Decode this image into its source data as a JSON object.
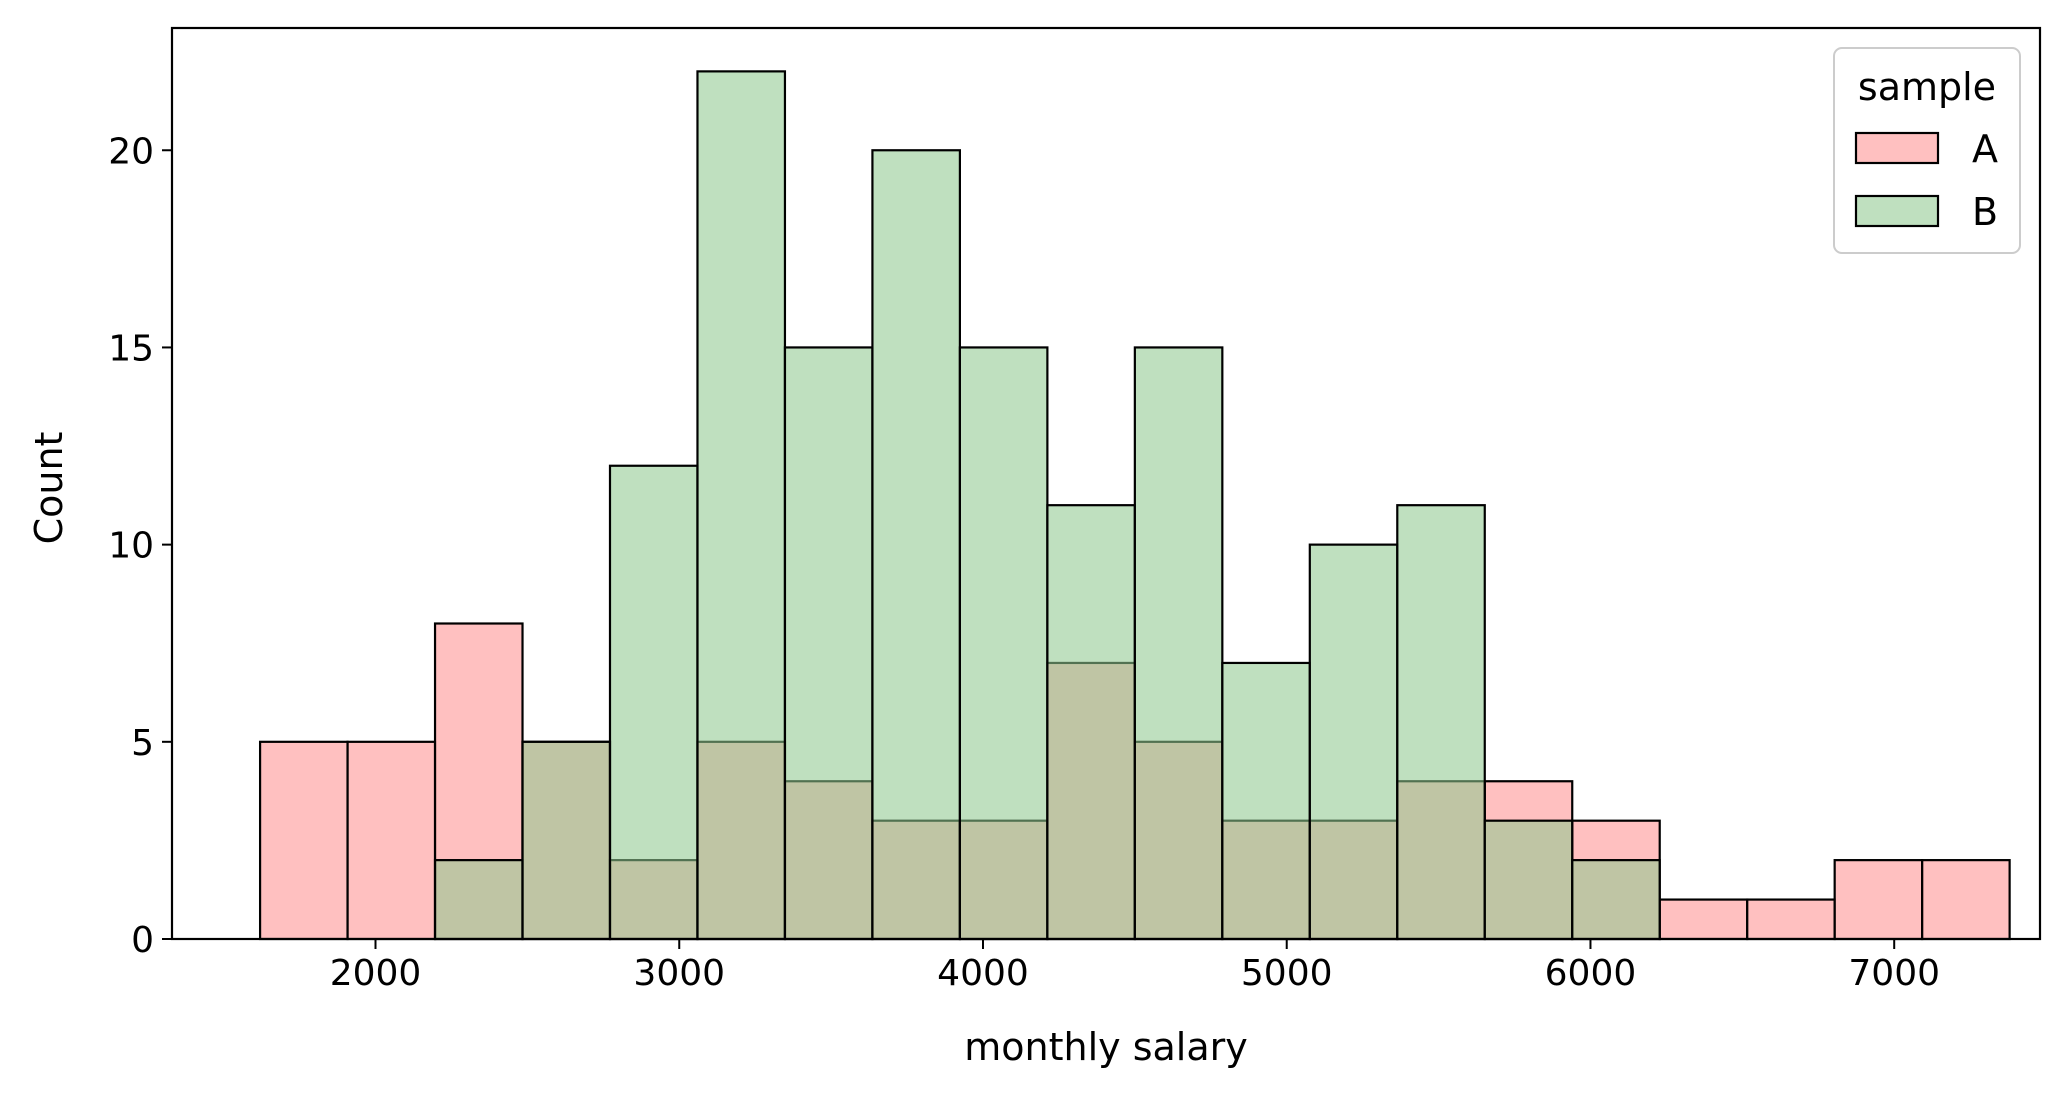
{
  "chart_data": {
    "type": "histogram",
    "xlabel": "monthly salary",
    "ylabel": "Count",
    "xlim": [
      1330,
      7480
    ],
    "ylim": [
      0,
      23.1
    ],
    "xticks": [
      2000,
      3000,
      4000,
      5000,
      6000,
      7000
    ],
    "yticks": [
      0,
      5,
      10,
      15,
      20
    ],
    "bin_edges": [
      1620,
      1908,
      2196,
      2484,
      2772,
      3060,
      3348,
      3636,
      3924,
      4212,
      4500,
      4788,
      5076,
      5364,
      5652,
      5940,
      6228,
      6516,
      6804,
      7092,
      7380
    ],
    "series": [
      {
        "name": "A",
        "color": "#ff9a9a",
        "alpha": 0.62,
        "values": [
          5,
          5,
          8,
          5,
          2,
          5,
          4,
          3,
          3,
          7,
          5,
          3,
          3,
          4,
          4,
          3,
          1,
          1,
          2,
          2
        ]
      },
      {
        "name": "B",
        "color": "#8fc98f",
        "alpha": 0.57,
        "values": [
          0,
          0,
          2,
          5,
          12,
          22,
          15,
          20,
          15,
          11,
          15,
          7,
          10,
          11,
          3,
          2,
          0,
          0,
          0,
          0
        ]
      }
    ],
    "grid": false,
    "legend": {
      "title": "sample",
      "position": "top-right"
    }
  }
}
